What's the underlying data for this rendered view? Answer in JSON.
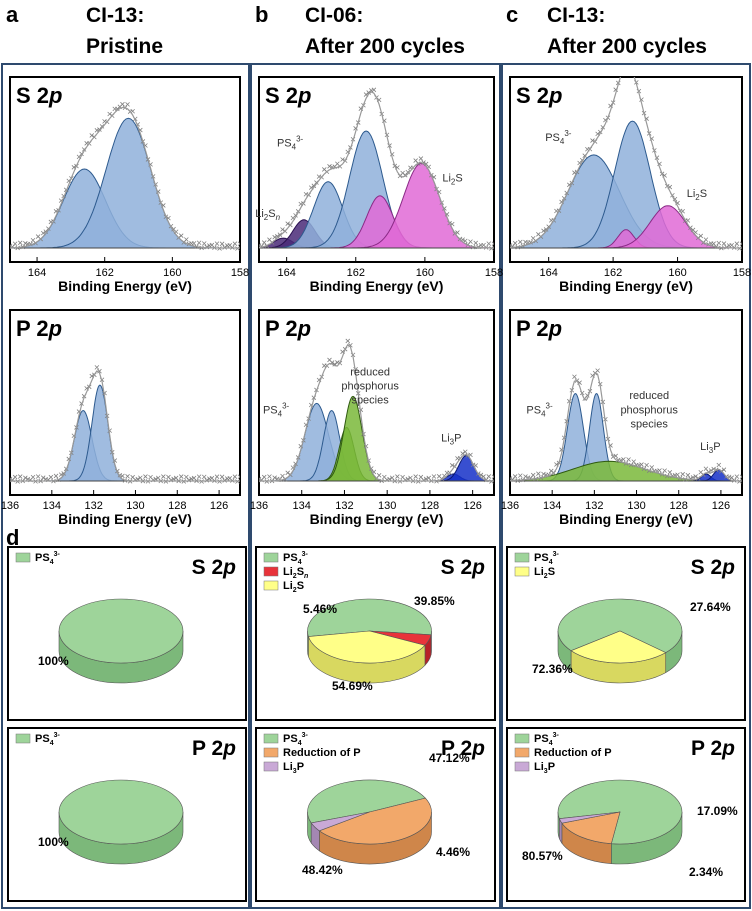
{
  "colors": {
    "frame": "#2e4a6e",
    "spectrum_blue_fill": "#8fb0da",
    "spectrum_blue_stroke": "#2d5a8e",
    "spectrum_magenta_fill": "#e06ad6",
    "spectrum_purple_fill": "#4a2a78",
    "spectrum_green_fill": "#7ab83a",
    "spectrum_blue_dark_fill": "#1530c8",
    "raw_data": "#808080",
    "pie_green": "#9ed49a",
    "pie_red": "#e8333a",
    "pie_yellow": "#ffff88",
    "pie_orange": "#f2a86a",
    "pie_lilac": "#c9a9d6"
  },
  "panel_labels": [
    "a",
    "b",
    "c",
    "d"
  ],
  "columns": [
    {
      "title_line1": "CI-13:",
      "title_line2": "Pristine"
    },
    {
      "title_line1": "CI-06:",
      "title_line2": "After 200 cycles"
    },
    {
      "title_line1": "CI-13:",
      "title_line2": "After 200 cycles"
    }
  ],
  "chart_data": [
    {
      "type": "line",
      "id": "a-s2p",
      "title": "S 2p",
      "xlabel": "Binding Energy (eV)",
      "ylabel": "",
      "xlim": [
        164.8,
        158
      ],
      "x_reversed": true,
      "xticks": [
        "164",
        "162",
        "160",
        "158"
      ],
      "series": [
        {
          "name": "PS4 3- (S 2p1/2)",
          "center": 162.6,
          "height": 0.56,
          "sigma": 0.62,
          "color": "blue"
        },
        {
          "name": "PS4 3- (S 2p3/2)",
          "center": 161.3,
          "height": 0.92,
          "sigma": 0.66,
          "color": "blue"
        }
      ],
      "annotations": []
    },
    {
      "type": "line",
      "id": "b-s2p",
      "title": "S 2p",
      "xlabel": "Binding Energy (eV)",
      "ylabel": "",
      "xlim": [
        164.8,
        158
      ],
      "x_reversed": true,
      "xticks": [
        "164",
        "162",
        "160",
        "158"
      ],
      "series": [
        {
          "name": "Li2Sn a",
          "center": 164.1,
          "height": 0.07,
          "sigma": 0.28,
          "color": "purple"
        },
        {
          "name": "Li2Sn b",
          "center": 163.5,
          "height": 0.2,
          "sigma": 0.32,
          "color": "purple"
        },
        {
          "name": "PS4 3- a",
          "center": 162.8,
          "height": 0.47,
          "sigma": 0.42,
          "color": "blue"
        },
        {
          "name": "PS4 3- b",
          "center": 161.7,
          "height": 0.83,
          "sigma": 0.48,
          "color": "blue"
        },
        {
          "name": "Li2S a",
          "center": 161.3,
          "height": 0.37,
          "sigma": 0.38,
          "color": "magenta"
        },
        {
          "name": "Li2S b",
          "center": 160.1,
          "height": 0.6,
          "sigma": 0.52,
          "color": "magenta"
        }
      ],
      "annotations": [
        {
          "text": "PS4",
          "sup": "3-",
          "sub": "4",
          "base": "PS",
          "at": 163.9,
          "h": 0.72
        },
        {
          "text": "Li2Sn",
          "at": 164.55,
          "h": 0.22
        },
        {
          "text": "Li2S",
          "at": 159.2,
          "h": 0.47
        }
      ]
    },
    {
      "type": "line",
      "id": "c-s2p",
      "title": "S 2p",
      "xlabel": "Binding Energy (eV)",
      "ylabel": "",
      "xlim": [
        165.2,
        158
      ],
      "x_reversed": true,
      "xticks": [
        "164",
        "162",
        "160",
        "158"
      ],
      "series": [
        {
          "name": "PS4 3- a",
          "center": 162.6,
          "height": 0.66,
          "sigma": 0.8,
          "color": "blue"
        },
        {
          "name": "PS4 3- b",
          "center": 161.4,
          "height": 0.9,
          "sigma": 0.55,
          "color": "blue"
        },
        {
          "name": "Li2S a",
          "center": 161.6,
          "height": 0.13,
          "sigma": 0.25,
          "color": "magenta"
        },
        {
          "name": "Li2S b",
          "center": 160.3,
          "height": 0.3,
          "sigma": 0.55,
          "color": "magenta"
        }
      ],
      "annotations": [
        {
          "text": "PS4 3-",
          "at": 163.7,
          "h": 0.76
        },
        {
          "text": "Li2S",
          "at": 159.4,
          "h": 0.36
        }
      ]
    },
    {
      "type": "line",
      "id": "a-p2p",
      "title": "P 2p",
      "xlabel": "Binding Energy (eV)",
      "ylabel": "",
      "xlim": [
        136,
        125
      ],
      "x_reversed": true,
      "xticks": [
        "136",
        "134",
        "132",
        "130",
        "128",
        "126"
      ],
      "series": [
        {
          "name": "PS4 3- (P 2p1/2)",
          "center": 132.5,
          "height": 0.5,
          "sigma": 0.42,
          "color": "blue"
        },
        {
          "name": "PS4 3- (P 2p3/2)",
          "center": 131.7,
          "height": 0.68,
          "sigma": 0.38,
          "color": "blue"
        }
      ],
      "annotations": []
    },
    {
      "type": "line",
      "id": "b-p2p",
      "title": "P 2p",
      "xlabel": "Binding Energy (eV)",
      "ylabel": "",
      "xlim": [
        136,
        125
      ],
      "x_reversed": true,
      "xticks": [
        "136",
        "134",
        "132",
        "130",
        "128",
        "126"
      ],
      "series": [
        {
          "name": "PS4 3- a",
          "center": 133.3,
          "height": 0.55,
          "sigma": 0.55,
          "color": "blue"
        },
        {
          "name": "PS4 3- b",
          "center": 132.6,
          "height": 0.5,
          "sigma": 0.38,
          "color": "blue"
        },
        {
          "name": "reduced P a",
          "center": 131.9,
          "height": 0.38,
          "sigma": 0.35,
          "color": "green"
        },
        {
          "name": "reduced P b",
          "center": 131.6,
          "height": 0.6,
          "sigma": 0.42,
          "color": "green"
        },
        {
          "name": "Li3P a",
          "center": 126.9,
          "height": 0.05,
          "sigma": 0.3,
          "color": "darkblue"
        },
        {
          "name": "Li3P b",
          "center": 126.3,
          "height": 0.18,
          "sigma": 0.35,
          "color": "darkblue"
        }
      ],
      "annotations": [
        {
          "text": "PS4 3-",
          "at": 135.2,
          "h": 0.48
        },
        {
          "text": "reduced",
          "at": 130.8,
          "h": 0.75
        },
        {
          "text": "phosphorus",
          "at": 130.8,
          "h": 0.65
        },
        {
          "text": "species",
          "at": 130.8,
          "h": 0.55
        },
        {
          "text": "Li3P",
          "at": 127.0,
          "h": 0.28
        }
      ]
    },
    {
      "type": "line",
      "id": "c-p2p",
      "title": "P 2p",
      "xlabel": "Binding Energy (eV)",
      "ylabel": "",
      "xlim": [
        136,
        125
      ],
      "x_reversed": true,
      "xticks": [
        "136",
        "134",
        "132",
        "130",
        "128",
        "126"
      ],
      "series": [
        {
          "name": "PS4 3- a",
          "center": 132.9,
          "height": 0.62,
          "sigma": 0.38,
          "color": "blue"
        },
        {
          "name": "PS4 3- b",
          "center": 131.9,
          "height": 0.62,
          "sigma": 0.33,
          "color": "blue"
        },
        {
          "name": "reduced P",
          "center": 131.3,
          "height": 0.14,
          "sigma": 1.7,
          "color": "green"
        },
        {
          "name": "Li3P a",
          "center": 126.7,
          "height": 0.05,
          "sigma": 0.22,
          "color": "darkblue"
        },
        {
          "name": "Li3P b",
          "center": 126.1,
          "height": 0.08,
          "sigma": 0.25,
          "color": "darkblue"
        }
      ],
      "annotations": [
        {
          "text": "PS4 3-",
          "at": 134.6,
          "h": 0.48
        },
        {
          "text": "reduced",
          "at": 129.4,
          "h": 0.58
        },
        {
          "text": "phosphorus",
          "at": 129.4,
          "h": 0.48
        },
        {
          "text": "species",
          "at": 129.4,
          "h": 0.38
        },
        {
          "text": "Li3P",
          "at": 126.5,
          "h": 0.22
        }
      ]
    },
    {
      "type": "pie",
      "id": "a-pie-s",
      "title": "S 2p",
      "slices": [
        {
          "label": "PS4 3-",
          "value": 100,
          "color": "green",
          "pct_label": "100%"
        }
      ]
    },
    {
      "type": "pie",
      "id": "b-pie-s",
      "title": "S 2p",
      "slices": [
        {
          "label": "PS4 3-",
          "value": 54.69,
          "color": "green",
          "pct_label": "54.69%"
        },
        {
          "label": "Li2Sn",
          "value": 5.46,
          "color": "red",
          "pct_label": "5.46%"
        },
        {
          "label": "Li2S",
          "value": 39.85,
          "color": "yellow",
          "pct_label": "39.85%"
        }
      ]
    },
    {
      "type": "pie",
      "id": "c-pie-s",
      "title": "S 2p",
      "slices": [
        {
          "label": "PS4 3-",
          "value": 72.36,
          "color": "green",
          "pct_label": "72.36%"
        },
        {
          "label": "Li2S",
          "value": 27.64,
          "color": "yellow",
          "pct_label": "27.64%"
        }
      ]
    },
    {
      "type": "pie",
      "id": "a-pie-p",
      "title": "P 2p",
      "slices": [
        {
          "label": "PS4 3-",
          "value": 100,
          "color": "green",
          "pct_label": "100%"
        }
      ]
    },
    {
      "type": "pie",
      "id": "b-pie-p",
      "title": "P 2p",
      "slices": [
        {
          "label": "PS4 3-",
          "value": 48.42,
          "color": "green",
          "pct_label": "48.42%"
        },
        {
          "label": "Reduction of P",
          "value": 47.12,
          "color": "orange",
          "pct_label": "47.12%"
        },
        {
          "label": "Li3P",
          "value": 4.46,
          "color": "lilac",
          "pct_label": "4.46%"
        }
      ]
    },
    {
      "type": "pie",
      "id": "c-pie-p",
      "title": "P 2p",
      "slices": [
        {
          "label": "PS4 3-",
          "value": 80.57,
          "color": "green",
          "pct_label": "80.57%"
        },
        {
          "label": "Reduction of P",
          "value": 17.09,
          "color": "orange",
          "pct_label": "17.09%"
        },
        {
          "label": "Li3P",
          "value": 2.34,
          "color": "lilac",
          "pct_label": "2.34%"
        }
      ]
    }
  ]
}
